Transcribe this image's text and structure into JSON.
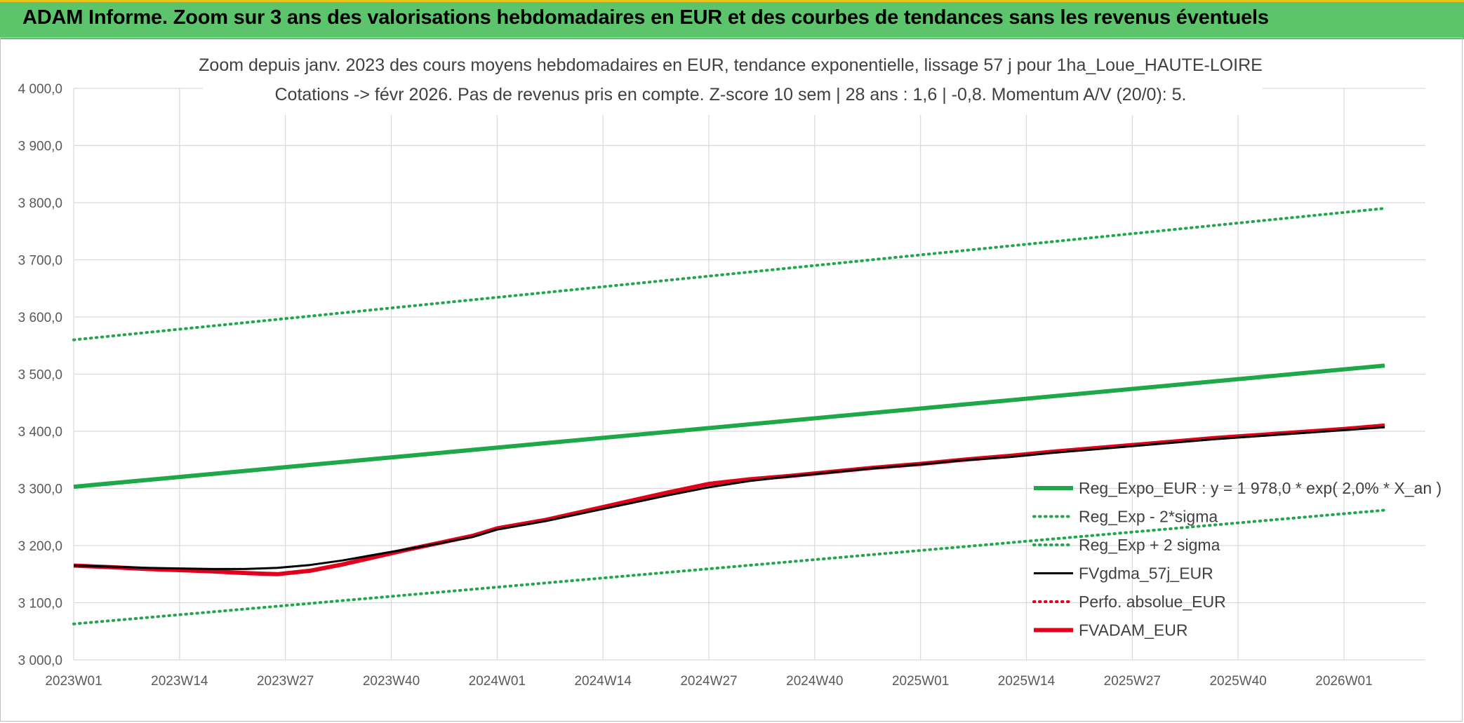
{
  "banner": {
    "title": "ADAM Informe. Zoom sur 3 ans des valorisations hebdomadaires en EUR et des courbes de tendances sans les revenus éventuels"
  },
  "colors": {
    "banner": "#5cc46a",
    "banner_accent": "#e8c21a",
    "trend_green": "#1fa84a",
    "band_green": "#1fa84a",
    "fv_black": "#000000",
    "adam_red": "#e3001b",
    "grid": "#d9d9d9"
  },
  "chart_data": {
    "type": "line",
    "title_lines": [
      "Zoom depuis janv. 2023 des cours moyens hebdomadaires en EUR, tendance exponentielle, lissage 57 j pour 1ha_Loue_HAUTE-LOIRE",
      "Cotations -> févr 2026. Pas de revenus pris en compte. Z-score 10 sem | 28 ans : 1,6 | -0,8. Momentum A/V (20/0): 5."
    ],
    "x_categories": [
      "2023W01",
      "2023W14",
      "2023W27",
      "2023W40",
      "2024W01",
      "2024W14",
      "2024W27",
      "2024W40",
      "2025W01",
      "2025W14",
      "2025W27",
      "2025W40",
      "2026W01"
    ],
    "y_ticks": [
      "3 000,0",
      "3 100,0",
      "3 200,0",
      "3 300,0",
      "3 400,0",
      "3 500,0",
      "3 600,0",
      "3 700,0",
      "3 800,0",
      "3 900,0",
      "4 000,0"
    ],
    "ylim": [
      3000,
      4000
    ],
    "grid": true,
    "legend_position": "right",
    "series": [
      {
        "name": "Reg_Expo_EUR : y = 1 978,0 * exp( 2,0% *  X_an )",
        "style": "solid-thick",
        "color": "#1fa84a",
        "points": [
          [
            "2023W01",
            3303
          ],
          [
            "2026W06",
            3515
          ]
        ]
      },
      {
        "name": "Reg_Exp - 2*sigma",
        "style": "dotted",
        "color": "#1fa84a",
        "points": [
          [
            "2023W01",
            3063
          ],
          [
            "2026W06",
            3262
          ]
        ]
      },
      {
        "name": "Reg_Exp + 2 sigma",
        "style": "dotted",
        "color": "#1fa84a",
        "points": [
          [
            "2023W01",
            3560
          ],
          [
            "2026W06",
            3790
          ]
        ]
      },
      {
        "name": "FVgdma_57j_EUR",
        "style": "solid",
        "color": "#000000",
        "points": [
          [
            "2023W01",
            3165
          ],
          [
            "2023W06",
            3163
          ],
          [
            "2023W10",
            3161
          ],
          [
            "2023W14",
            3160
          ],
          [
            "2023W18",
            3159
          ],
          [
            "2023W22",
            3159
          ],
          [
            "2023W26",
            3161
          ],
          [
            "2023W30",
            3166
          ],
          [
            "2023W34",
            3174
          ],
          [
            "2023W38",
            3184
          ],
          [
            "2023W42",
            3194
          ],
          [
            "2023W46",
            3204
          ],
          [
            "2023W50",
            3215
          ],
          [
            "2024W01",
            3228
          ],
          [
            "2024W07",
            3243
          ],
          [
            "2024W12",
            3258
          ],
          [
            "2024W17",
            3273
          ],
          [
            "2024W22",
            3288
          ],
          [
            "2024W27",
            3302
          ],
          [
            "2024W32",
            3313
          ],
          [
            "2024W37",
            3321
          ],
          [
            "2024W42",
            3328
          ],
          [
            "2024W47",
            3335
          ],
          [
            "2025W01",
            3342
          ],
          [
            "2025W06",
            3349
          ],
          [
            "2025W12",
            3355
          ],
          [
            "2025W17",
            3362
          ],
          [
            "2025W22",
            3368
          ],
          [
            "2025W27",
            3374
          ],
          [
            "2025W32",
            3380
          ],
          [
            "2025W37",
            3386
          ],
          [
            "2025W42",
            3391
          ],
          [
            "2025W47",
            3396
          ],
          [
            "2026W01",
            3402
          ],
          [
            "2026W06",
            3407
          ]
        ]
      },
      {
        "name": "Perfo. absolue_EUR",
        "style": "dotted",
        "color": "#e3001b",
        "points": []
      },
      {
        "name": "FVADAM_EUR",
        "style": "solid-thick",
        "color": "#e3001b",
        "points": [
          [
            "2023W01",
            3165
          ],
          [
            "2023W06",
            3162
          ],
          [
            "2023W10",
            3159
          ],
          [
            "2023W14",
            3157
          ],
          [
            "2023W18",
            3155
          ],
          [
            "2023W22",
            3152
          ],
          [
            "2023W26",
            3150
          ],
          [
            "2023W30",
            3156
          ],
          [
            "2023W34",
            3167
          ],
          [
            "2023W38",
            3180
          ],
          [
            "2023W42",
            3193
          ],
          [
            "2023W46",
            3205
          ],
          [
            "2023W50",
            3217
          ],
          [
            "2024W01",
            3230
          ],
          [
            "2024W07",
            3245
          ],
          [
            "2024W12",
            3261
          ],
          [
            "2024W17",
            3277
          ],
          [
            "2024W22",
            3293
          ],
          [
            "2024W27",
            3308
          ],
          [
            "2024W32",
            3316
          ],
          [
            "2024W37",
            3322
          ],
          [
            "2024W42",
            3329
          ],
          [
            "2024W47",
            3336
          ],
          [
            "2025W01",
            3343
          ],
          [
            "2025W06",
            3350
          ],
          [
            "2025W12",
            3357
          ],
          [
            "2025W17",
            3364
          ],
          [
            "2025W22",
            3370
          ],
          [
            "2025W27",
            3376
          ],
          [
            "2025W32",
            3382
          ],
          [
            "2025W37",
            3388
          ],
          [
            "2025W42",
            3393
          ],
          [
            "2025W47",
            3398
          ],
          [
            "2026W01",
            3404
          ],
          [
            "2026W06",
            3410
          ]
        ]
      }
    ]
  }
}
